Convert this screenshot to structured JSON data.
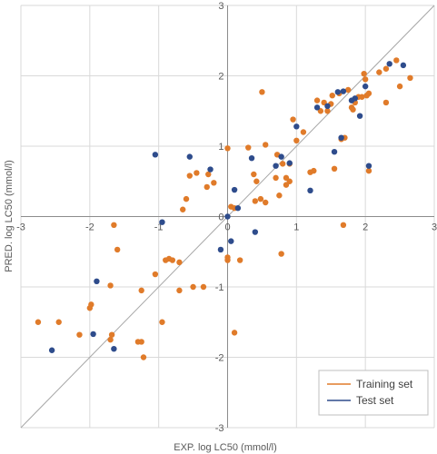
{
  "chart_data": {
    "type": "scatter",
    "xlabel": "EXP. log LC50 (mmol/l)",
    "ylabel": "PRED. log LC50 (mmol/l)",
    "xlim": [
      -3,
      3
    ],
    "ylim": [
      -3,
      3
    ],
    "x_ticks": [
      "-3",
      "-2",
      "-1",
      "0",
      "1",
      "2",
      "3"
    ],
    "y_ticks": [
      "-3",
      "-2",
      "-1",
      "0",
      "1",
      "2",
      "3"
    ],
    "grid": true,
    "legend_position": "bottom-right",
    "identity_line": true,
    "colors": {
      "training": "#E07B2A",
      "test": "#2E4C8C",
      "identity": "#a6a6a6",
      "grid": "#d9d9d9"
    },
    "series": [
      {
        "name": "Training set",
        "points": [
          [
            -2.75,
            -1.5
          ],
          [
            -2.45,
            -1.5
          ],
          [
            -2.15,
            -1.68
          ],
          [
            -2.0,
            -1.3
          ],
          [
            -1.98,
            -1.25
          ],
          [
            -1.7,
            -1.75
          ],
          [
            -1.68,
            -1.68
          ],
          [
            -1.7,
            -0.98
          ],
          [
            -1.65,
            -0.12
          ],
          [
            -1.6,
            -0.47
          ],
          [
            -1.3,
            -1.78
          ],
          [
            -1.25,
            -1.78
          ],
          [
            -1.22,
            -2.0
          ],
          [
            -1.25,
            -1.05
          ],
          [
            -1.05,
            -0.82
          ],
          [
            -0.95,
            -1.5
          ],
          [
            -0.9,
            -0.62
          ],
          [
            -0.85,
            -0.6
          ],
          [
            -0.8,
            -0.62
          ],
          [
            -0.7,
            -0.65
          ],
          [
            -0.7,
            -1.05
          ],
          [
            -0.55,
            0.58
          ],
          [
            -0.5,
            -1.0
          ],
          [
            -0.6,
            0.25
          ],
          [
            -0.65,
            0.1
          ],
          [
            -0.35,
            -1.0
          ],
          [
            -0.3,
            0.42
          ],
          [
            -0.28,
            0.6
          ],
          [
            -0.45,
            0.62
          ],
          [
            -0.2,
            0.48
          ],
          [
            0.0,
            -0.62
          ],
          [
            0.0,
            -0.58
          ],
          [
            0.05,
            0.14
          ],
          [
            0.1,
            0.12
          ],
          [
            0.0,
            0.97
          ],
          [
            0.1,
            -1.65
          ],
          [
            0.18,
            -0.62
          ],
          [
            0.3,
            0.98
          ],
          [
            0.38,
            0.6
          ],
          [
            0.42,
            0.5
          ],
          [
            0.48,
            0.25
          ],
          [
            0.4,
            0.22
          ],
          [
            0.5,
            1.77
          ],
          [
            0.55,
            1.02
          ],
          [
            0.55,
            0.2
          ],
          [
            0.7,
            0.55
          ],
          [
            0.72,
            0.88
          ],
          [
            0.8,
            0.75
          ],
          [
            0.85,
            0.55
          ],
          [
            0.9,
            0.75
          ],
          [
            0.9,
            0.5
          ],
          [
            0.85,
            0.45
          ],
          [
            0.75,
            0.3
          ],
          [
            0.78,
            -0.53
          ],
          [
            0.95,
            1.38
          ],
          [
            1.0,
            1.08
          ],
          [
            1.1,
            1.2
          ],
          [
            1.2,
            0.63
          ],
          [
            1.25,
            0.65
          ],
          [
            1.35,
            1.5
          ],
          [
            1.3,
            1.65
          ],
          [
            1.4,
            1.62
          ],
          [
            1.45,
            1.5
          ],
          [
            1.5,
            1.6
          ],
          [
            1.52,
            1.72
          ],
          [
            1.55,
            0.68
          ],
          [
            1.62,
            1.75
          ],
          [
            1.65,
            1.1
          ],
          [
            1.7,
            1.12
          ],
          [
            1.68,
            -0.12
          ],
          [
            1.75,
            1.8
          ],
          [
            1.8,
            1.55
          ],
          [
            1.82,
            1.52
          ],
          [
            1.85,
            1.62
          ],
          [
            1.9,
            1.7
          ],
          [
            1.95,
            1.7
          ],
          [
            1.98,
            2.03
          ],
          [
            2.02,
            1.72
          ],
          [
            2.05,
            1.75
          ],
          [
            2.05,
            0.65
          ],
          [
            2.2,
            2.05
          ],
          [
            2.3,
            2.1
          ],
          [
            2.3,
            1.62
          ],
          [
            2.5,
            1.85
          ],
          [
            2.65,
            1.97
          ],
          [
            2.45,
            2.22
          ],
          [
            2.0,
            1.95
          ]
        ]
      },
      {
        "name": "Test set",
        "points": [
          [
            -2.55,
            -1.9
          ],
          [
            -1.9,
            -0.92
          ],
          [
            -1.95,
            -1.67
          ],
          [
            -1.65,
            -1.88
          ],
          [
            -1.05,
            0.88
          ],
          [
            -0.95,
            -0.08
          ],
          [
            -0.55,
            0.85
          ],
          [
            -0.25,
            0.67
          ],
          [
            -0.1,
            -0.47
          ],
          [
            0.0,
            0.0
          ],
          [
            0.05,
            -0.35
          ],
          [
            0.1,
            0.38
          ],
          [
            0.15,
            0.12
          ],
          [
            0.35,
            0.83
          ],
          [
            0.4,
            -0.22
          ],
          [
            0.7,
            0.72
          ],
          [
            0.78,
            0.85
          ],
          [
            0.9,
            0.76
          ],
          [
            1.0,
            1.28
          ],
          [
            1.2,
            0.37
          ],
          [
            1.3,
            1.55
          ],
          [
            1.45,
            1.57
          ],
          [
            1.55,
            0.92
          ],
          [
            1.6,
            1.77
          ],
          [
            1.65,
            1.12
          ],
          [
            1.68,
            1.78
          ],
          [
            1.8,
            1.65
          ],
          [
            1.85,
            1.68
          ],
          [
            1.92,
            1.43
          ],
          [
            2.0,
            1.85
          ],
          [
            2.05,
            0.72
          ],
          [
            2.35,
            2.17
          ],
          [
            2.55,
            2.15
          ]
        ]
      }
    ]
  }
}
